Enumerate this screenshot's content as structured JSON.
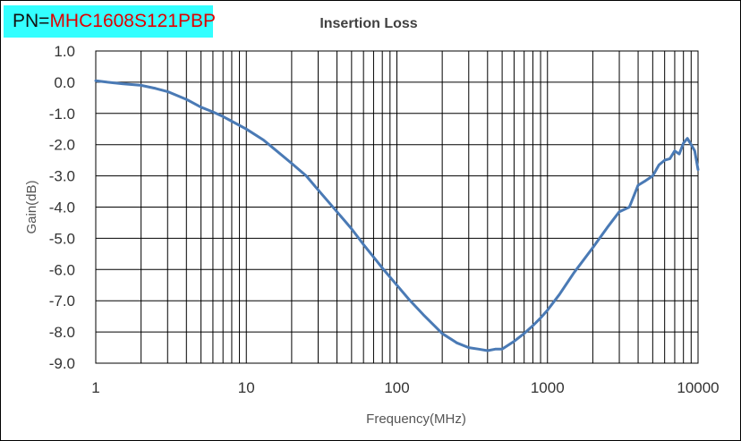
{
  "pn": {
    "prefix": "PN=",
    "value": "MHC1608S121PBP",
    "background": "#33ffff",
    "value_color": "#e00000"
  },
  "chart_data": {
    "type": "line",
    "title": "Insertion Loss",
    "xlabel": "Frequency(MHz)",
    "ylabel": "Gain(dB)",
    "xscale": "log",
    "xlim": [
      1,
      10000
    ],
    "ylim": [
      -9.0,
      1.0
    ],
    "x_ticks": [
      1,
      10,
      100,
      1000,
      10000
    ],
    "x_tick_labels": [
      "1",
      "10",
      "100",
      "1000",
      "10000"
    ],
    "y_ticks": [
      1,
      0,
      -1,
      -2,
      -3,
      -4,
      -5,
      -6,
      -7,
      -8,
      -9
    ],
    "y_tick_labels": [
      "1.0",
      "0.0",
      "-1.0",
      "-2.0",
      "-3.0",
      "-4.0",
      "-5.0",
      "-6.0",
      "-7.0",
      "-8.0",
      "-9.0"
    ],
    "grid": true,
    "legend": "none",
    "line_color": "#4a7ab5",
    "series": [
      {
        "x": [
          1,
          1.2,
          1.5,
          2,
          2.5,
          3,
          4,
          5,
          6,
          7,
          8,
          10,
          13,
          15,
          20,
          25,
          30,
          40,
          50,
          60,
          70,
          80,
          100,
          120,
          150,
          200,
          250,
          300,
          350,
          400,
          450,
          500,
          600,
          700,
          800,
          900,
          1000,
          1200,
          1500,
          2000,
          2500,
          3000,
          3500,
          4000,
          4500,
          5000,
          5500,
          6000,
          6500,
          7000,
          7500,
          8000,
          8500,
          9000,
          9500,
          10000
        ],
        "y": [
          0.05,
          0.0,
          -0.05,
          -0.1,
          -0.2,
          -0.3,
          -0.55,
          -0.8,
          -0.95,
          -1.1,
          -1.25,
          -1.5,
          -1.85,
          -2.1,
          -2.6,
          -3.0,
          -3.45,
          -4.15,
          -4.7,
          -5.2,
          -5.6,
          -5.95,
          -6.5,
          -6.95,
          -7.45,
          -8.05,
          -8.35,
          -8.5,
          -8.55,
          -8.6,
          -8.55,
          -8.55,
          -8.3,
          -8.05,
          -7.8,
          -7.55,
          -7.3,
          -6.8,
          -6.1,
          -5.3,
          -4.65,
          -4.15,
          -4.0,
          -3.3,
          -3.15,
          -3.0,
          -2.65,
          -2.5,
          -2.45,
          -2.2,
          -2.3,
          -1.95,
          -1.8,
          -2.0,
          -2.2,
          -2.8
        ]
      }
    ]
  }
}
